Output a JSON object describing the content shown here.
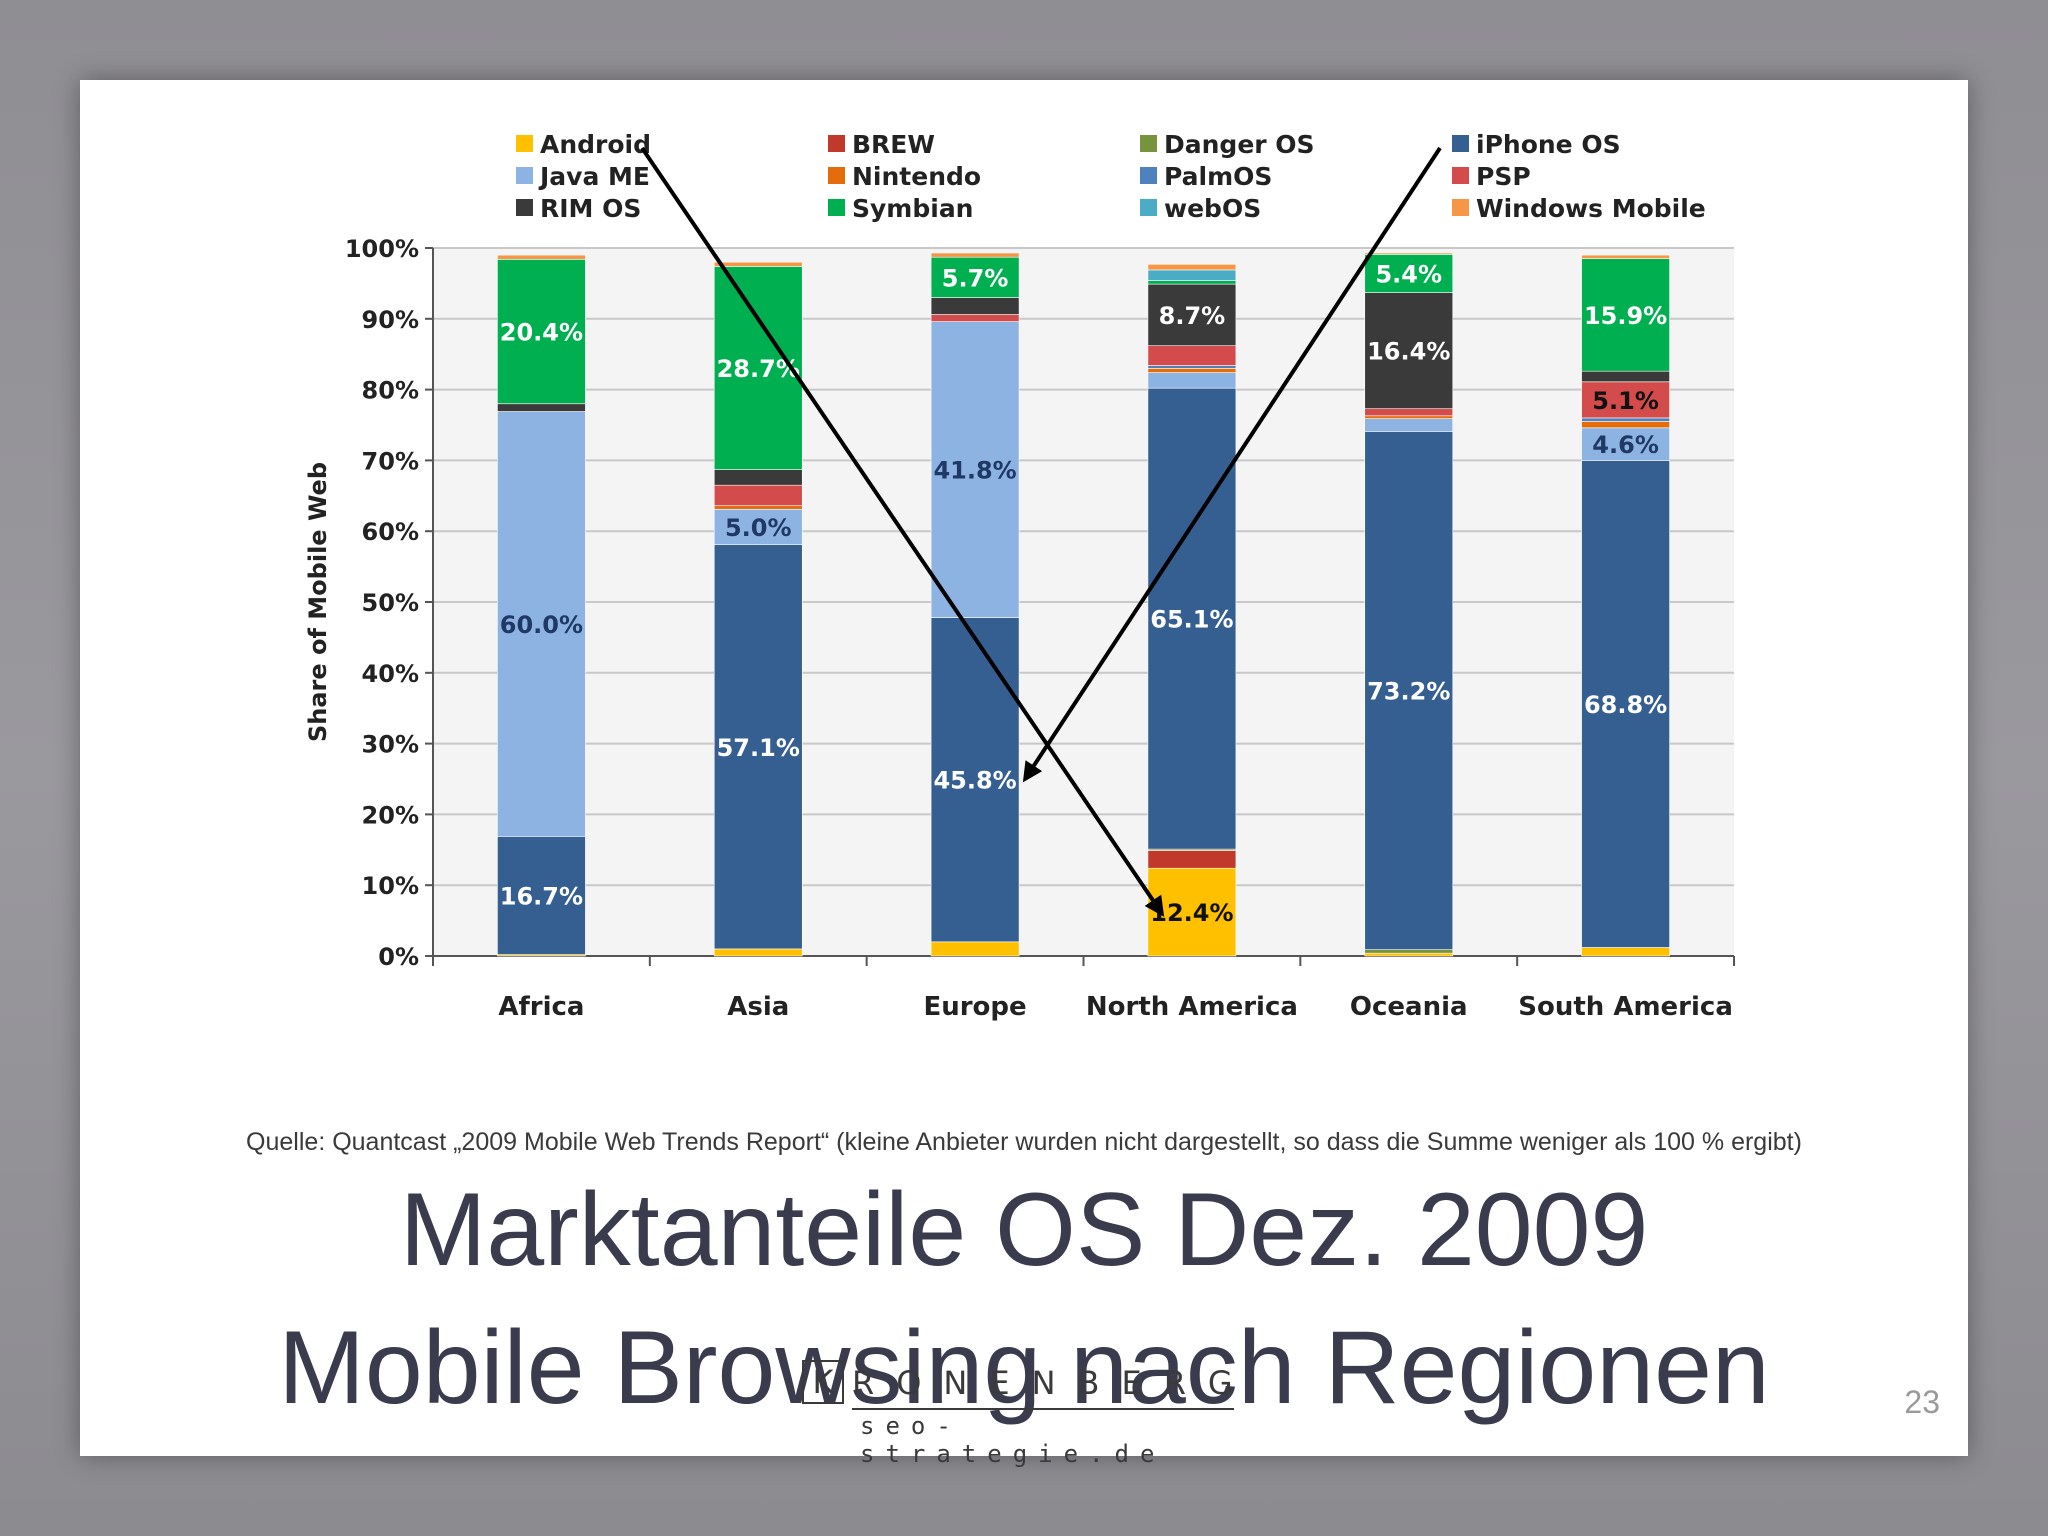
{
  "chart_data": {
    "type": "bar",
    "stacked": true,
    "ylabel": "Share of Mobile Web",
    "ylim": [
      0,
      100
    ],
    "yticks": [
      "0%",
      "10%",
      "20%",
      "30%",
      "40%",
      "50%",
      "60%",
      "70%",
      "80%",
      "90%",
      "100%"
    ],
    "grid": true,
    "legend_position": "top",
    "categories": [
      "Africa",
      "Asia",
      "Europe",
      "North America",
      "Oceania",
      "South America"
    ],
    "series": [
      {
        "name": "Android",
        "color": "#ffc000",
        "values": [
          0.2,
          1.0,
          2.0,
          12.4,
          0.4,
          1.2
        ],
        "labels": [
          "",
          "",
          "",
          "12.4%",
          "",
          ""
        ]
      },
      {
        "name": "BREW",
        "color": "#c0392b",
        "values": [
          0,
          0,
          0,
          2.5,
          0,
          0
        ],
        "labels": [
          "",
          "",
          "",
          "",
          "",
          ""
        ]
      },
      {
        "name": "Danger OS",
        "color": "#77933c",
        "values": [
          0,
          0,
          0,
          0.2,
          0.5,
          0
        ],
        "labels": [
          "",
          "",
          "",
          "",
          "",
          ""
        ]
      },
      {
        "name": "iPhone OS",
        "color": "#365f91",
        "values": [
          16.7,
          57.1,
          45.8,
          65.1,
          73.2,
          68.8
        ],
        "labels": [
          "16.7%",
          "57.1%",
          "45.8%",
          "65.1%",
          "73.2%",
          "68.8%"
        ]
      },
      {
        "name": "Java ME",
        "color": "#8db3e2",
        "values": [
          60.0,
          5.0,
          41.8,
          2.2,
          1.8,
          4.6
        ],
        "labels": [
          "60.0%",
          "5.0%",
          "41.8%",
          "",
          "",
          "4.6%"
        ]
      },
      {
        "name": "Nintendo",
        "color": "#e46c0a",
        "values": [
          0,
          0.5,
          0,
          0.6,
          0.4,
          0.9
        ],
        "labels": [
          "",
          "",
          "",
          "",
          "",
          ""
        ]
      },
      {
        "name": "PalmOS",
        "color": "#4f81bd",
        "values": [
          0,
          0,
          0,
          0.4,
          0,
          0.5
        ],
        "labels": [
          "",
          "",
          "",
          "",
          "",
          ""
        ]
      },
      {
        "name": "PSP",
        "color": "#d44b4b",
        "values": [
          0,
          2.9,
          1.0,
          2.8,
          1.0,
          5.1
        ],
        "labels": [
          "",
          "",
          "",
          "",
          "",
          "5.1%"
        ]
      },
      {
        "name": "RIM OS",
        "color": "#3a3a3a",
        "values": [
          1.1,
          2.2,
          2.4,
          8.7,
          16.4,
          1.5
        ],
        "labels": [
          "",
          "",
          "",
          "8.7%",
          "16.4%",
          ""
        ]
      },
      {
        "name": "Symbian",
        "color": "#00b050",
        "values": [
          20.4,
          28.7,
          5.7,
          0.5,
          5.4,
          15.9
        ],
        "labels": [
          "20.4%",
          "28.7%",
          "5.7%",
          "",
          "5.4%",
          "15.9%"
        ]
      },
      {
        "name": "webOS",
        "color": "#4bacc6",
        "values": [
          0,
          0,
          0,
          1.5,
          0,
          0
        ],
        "labels": [
          "",
          "",
          "",
          "",
          "",
          ""
        ]
      },
      {
        "name": "Windows Mobile",
        "color": "#f79646",
        "values": [
          0.6,
          0.6,
          0.6,
          0.8,
          0.2,
          0.5
        ],
        "labels": [
          "",
          "",
          "",
          "",
          "",
          ""
        ]
      }
    ],
    "legend_order": [
      "Android",
      "Java ME",
      "RIM OS",
      "BREW",
      "Nintendo",
      "Symbian",
      "Danger OS",
      "PalmOS",
      "webOS",
      "iPhone OS",
      "PSP",
      "Windows Mobile"
    ],
    "annotations": [
      {
        "type": "arrow",
        "from_legend": "Android",
        "to_category": "North America",
        "to_value": 6
      },
      {
        "type": "arrow",
        "from_legend": "iPhone OS",
        "to_category": "Europe",
        "to_value": 25
      }
    ]
  },
  "source_note": "Quelle: Quantcast „2009 Mobile Web Trends Report“ (kleine Anbieter wurden nicht dargestellt, so dass die Summe weniger als 100 % ergibt)",
  "title_line1": "Marktanteile OS Dez. 2009",
  "title_line2": "Mobile Browsing nach Regionen",
  "logo": {
    "box_letter": "K",
    "word": "RONENBERG",
    "sub": "seo-strategie.de"
  },
  "page_number": "23"
}
